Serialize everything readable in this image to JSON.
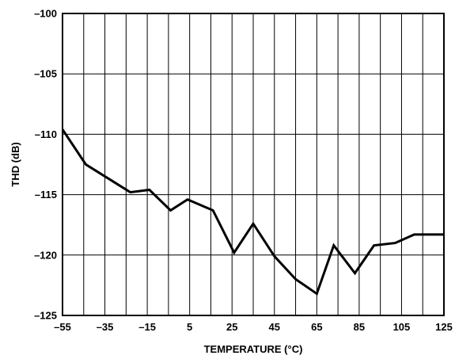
{
  "chart_data": {
    "type": "line",
    "xlabel": "TEMPERATURE (°C)",
    "ylabel": "THD (dB)",
    "xlim": [
      -55,
      125
    ],
    "ylim": [
      -125,
      -100
    ],
    "x_ticks": [
      -55,
      -35,
      -15,
      5,
      25,
      45,
      65,
      85,
      105,
      125
    ],
    "x_tick_labels": [
      "–55",
      "–35",
      "–15",
      "5",
      "25",
      "45",
      "65",
      "85",
      "105",
      "125"
    ],
    "y_ticks": [
      -100,
      -105,
      -110,
      -115,
      -120,
      -125
    ],
    "y_tick_labels": [
      "–100",
      "–105",
      "–110",
      "–115",
      "–120",
      "–125"
    ],
    "x_grid_step": 10,
    "grid": true,
    "line_color": "#000000",
    "series": [
      {
        "x": [
          -55,
          -44,
          -23,
          -14,
          -4,
          4,
          16,
          26,
          35,
          45,
          55,
          65,
          73,
          83,
          92,
          102,
          111,
          125
        ],
        "y": [
          -109.6,
          -112.5,
          -114.8,
          -114.6,
          -116.3,
          -115.4,
          -116.3,
          -119.8,
          -117.4,
          -120.1,
          -122.0,
          -123.2,
          -119.2,
          -121.5,
          -119.2,
          -119.0,
          -118.3,
          -118.3
        ]
      }
    ]
  }
}
